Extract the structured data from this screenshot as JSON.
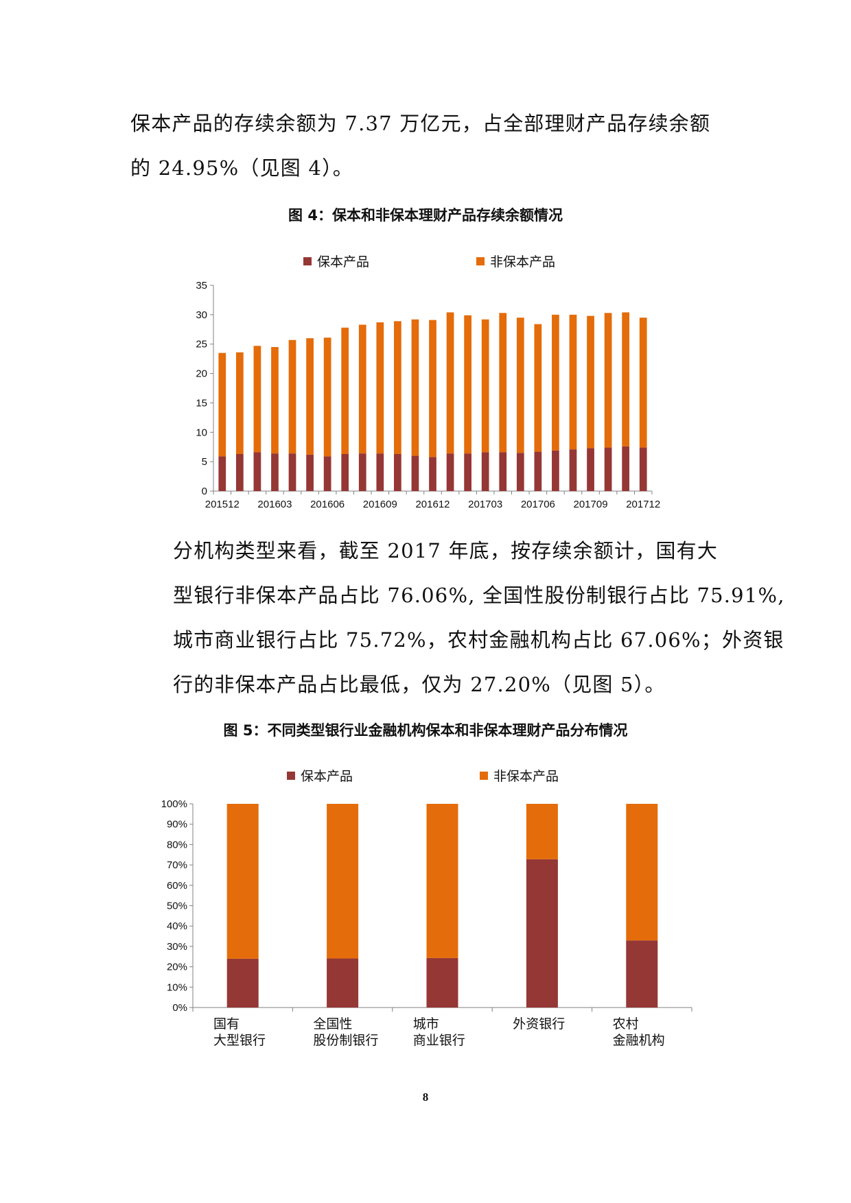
{
  "para1": [
    "保本产品的存续余额为 7.37 万亿元，占全部理财产品存续余额",
    "的 24.95%（见图 4）。"
  ],
  "fig4_title": "图 4：保本和非保本理财产品存续余额情况",
  "para2": [
    "分机构类型来看，截至 2017 年底，按存续余额计，国有大",
    "型银行非保本产品占比 76.06%, 全国性股份制银行占比 75.91%,",
    "城市商业银行占比 75.72%，农村金融机构占比 67.06%；外资银",
    "行的非保本产品占比最低，仅为 27.20%（见图 5）。"
  ],
  "fig5_title": "图 5：不同类型银行业金融机构保本和非保本理财产品分布情况",
  "page_number": "8",
  "colors": {
    "guaranteed": "#953735",
    "non_guaranteed": "#E46C0A",
    "axis": "#808080"
  },
  "chart_data": [
    {
      "type": "bar",
      "stacked": true,
      "title": "",
      "legend_position": "top",
      "categories": [
        "201512",
        "201601",
        "201602",
        "201603",
        "201604",
        "201605",
        "201606",
        "201607",
        "201608",
        "201609",
        "201610",
        "201611",
        "201612",
        "201701",
        "201702",
        "201703",
        "201704",
        "201705",
        "201706",
        "201707",
        "201708",
        "201709",
        "201710",
        "201711",
        "201712"
      ],
      "tick_labels": [
        "201512",
        "201603",
        "201606",
        "201609",
        "201612",
        "201703",
        "201706",
        "201709",
        "201712"
      ],
      "yticks": [
        "0",
        "5",
        "10",
        "15",
        "20",
        "25",
        "30",
        "35"
      ],
      "ylim": [
        0,
        35
      ],
      "grid": false,
      "series": [
        {
          "name": "保本产品",
          "values": [
            5.9,
            6.3,
            6.6,
            6.4,
            6.4,
            6.2,
            5.9,
            6.3,
            6.4,
            6.4,
            6.3,
            6.0,
            5.8,
            6.4,
            6.4,
            6.6,
            6.6,
            6.5,
            6.7,
            6.9,
            7.1,
            7.3,
            7.4,
            7.6,
            7.4
          ]
        },
        {
          "name": "非保本产品",
          "values": [
            17.6,
            17.3,
            18.1,
            18.1,
            19.3,
            19.8,
            20.2,
            21.5,
            21.9,
            22.3,
            22.6,
            23.2,
            23.3,
            24.0,
            23.5,
            22.6,
            23.7,
            23.0,
            21.7,
            23.1,
            22.9,
            22.5,
            22.9,
            22.8,
            22.1
          ]
        }
      ]
    },
    {
      "type": "bar",
      "stacked": true,
      "percent": true,
      "title": "",
      "legend_position": "top",
      "categories": [
        [
          "国有",
          "大型银行"
        ],
        [
          "全国性",
          "股份制银行"
        ],
        [
          "城市",
          "商业银行"
        ],
        [
          "外资银行"
        ],
        [
          "农村",
          "金融机构"
        ]
      ],
      "yticks": [
        "0%",
        "10%",
        "20%",
        "30%",
        "40%",
        "50%",
        "60%",
        "70%",
        "80%",
        "90%",
        "100%"
      ],
      "ylim": [
        0,
        100
      ],
      "grid": false,
      "series": [
        {
          "name": "保本产品",
          "values": [
            23.94,
            24.09,
            24.28,
            72.8,
            32.94
          ]
        },
        {
          "name": "非保本产品",
          "values": [
            76.06,
            75.91,
            75.72,
            27.2,
            67.06
          ]
        }
      ]
    }
  ]
}
